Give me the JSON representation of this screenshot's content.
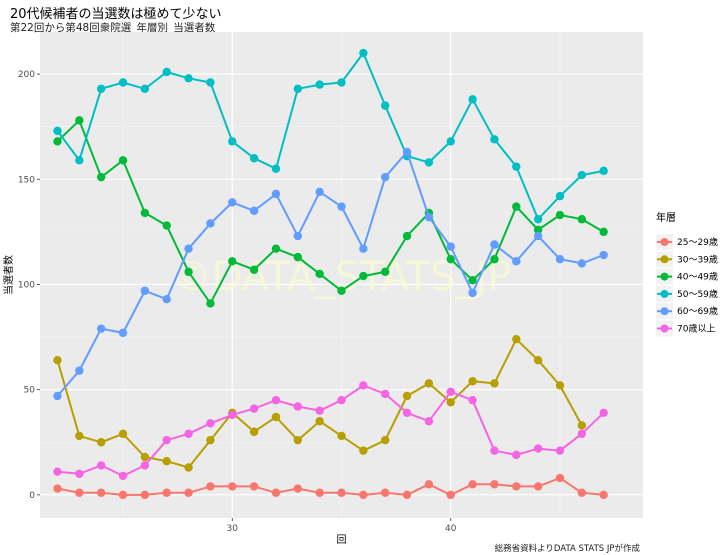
{
  "chart_data": {
    "type": "line",
    "title": "20代候補者の当選数は極めて少ない",
    "subtitle": "第22回から第48回衆院選_年層別_当選者数",
    "xlabel": "回",
    "ylabel": "当選者数",
    "caption": "総務省資料よりDATA STATS JPが作成",
    "watermark": "©DATA_STATS_JP",
    "legend_title": "年層",
    "legend_position": "right",
    "grid": true,
    "xlim": [
      21.2,
      48.8
    ],
    "ylim": [
      -11,
      220
    ],
    "x_ticks": [
      30,
      40
    ],
    "y_ticks": [
      0,
      50,
      100,
      150,
      200
    ],
    "x": [
      22,
      23,
      24,
      25,
      26,
      27,
      28,
      29,
      30,
      31,
      32,
      33,
      34,
      35,
      36,
      37,
      38,
      39,
      40,
      41,
      42,
      43,
      44,
      45,
      46,
      47,
      48
    ],
    "series": [
      {
        "name": "25～29歳",
        "color": "#F8766D",
        "values": [
          3,
          1,
          1,
          0,
          0,
          1,
          1,
          4,
          4,
          4,
          1,
          3,
          1,
          1,
          0,
          1,
          0,
          5,
          0,
          5,
          5,
          4,
          4,
          8,
          1,
          0,
          null
        ]
      },
      {
        "name": "30～39歳",
        "color": "#B79F00",
        "values": [
          64,
          28,
          25,
          29,
          18,
          16,
          13,
          26,
          39,
          30,
          37,
          26,
          35,
          28,
          21,
          26,
          47,
          53,
          44,
          54,
          53,
          74,
          64,
          52,
          33,
          null,
          null
        ]
      },
      {
        "name": "40～49歳",
        "color": "#00BA38",
        "values": [
          168,
          178,
          151,
          159,
          134,
          128,
          106,
          91,
          111,
          107,
          117,
          113,
          105,
          97,
          104,
          106,
          123,
          134,
          112,
          102,
          112,
          137,
          126,
          133,
          131,
          125,
          null
        ]
      },
      {
        "name": "50～59歳",
        "color": "#00BFC4",
        "values": [
          173,
          159,
          193,
          196,
          193,
          201,
          198,
          196,
          168,
          160,
          155,
          193,
          195,
          196,
          210,
          185,
          161,
          158,
          168,
          188,
          169,
          156,
          131,
          142,
          152,
          154,
          null
        ]
      },
      {
        "name": "60～69歳",
        "color": "#619CFF",
        "values": [
          47,
          59,
          79,
          77,
          97,
          93,
          117,
          129,
          139,
          135,
          143,
          123,
          144,
          137,
          117,
          151,
          163,
          132,
          118,
          96,
          119,
          111,
          123,
          112,
          110,
          114,
          null
        ]
      },
      {
        "name": "70歳以上",
        "color": "#F564E3",
        "values": [
          11,
          10,
          14,
          9,
          14,
          26,
          29,
          34,
          38,
          41,
          45,
          42,
          40,
          45,
          52,
          48,
          39,
          35,
          49,
          45,
          21,
          19,
          22,
          21,
          29,
          39,
          null
        ]
      }
    ]
  }
}
